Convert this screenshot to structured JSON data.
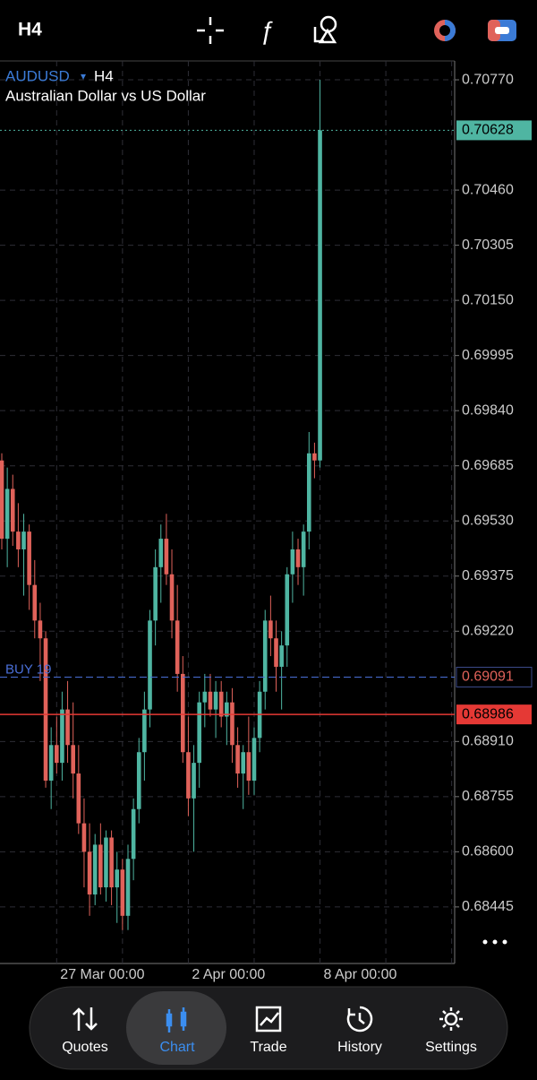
{
  "toolbar": {
    "timeframe": "H4"
  },
  "chart_data": {
    "type": "candlestick",
    "symbol": "AUDUSD",
    "timeframe": "H4",
    "description": "Australian Dollar vs US Dollar",
    "categories": [
      null,
      null,
      null,
      null,
      null,
      null,
      null,
      null,
      null,
      null,
      "27 Mar 00:00",
      null,
      null,
      null,
      null,
      null,
      null,
      null,
      null,
      null,
      null,
      null,
      null,
      null,
      null,
      null,
      null,
      null,
      null,
      null,
      null,
      null,
      null,
      null,
      "2 Apr 00:00",
      null,
      null,
      null,
      null,
      null,
      null,
      null,
      null,
      null,
      null,
      null,
      null,
      null,
      null,
      null,
      null,
      null,
      null,
      null,
      null,
      null,
      null,
      null,
      "8 Apr 00:00"
    ],
    "open": [
      0.697,
      0.6948,
      0.6962,
      0.695,
      0.6945,
      0.695,
      0.6935,
      0.6925,
      0.692,
      0.688,
      0.689,
      0.6885,
      0.69,
      0.689,
      0.6882,
      0.6868,
      0.686,
      0.6848,
      0.6862,
      0.685,
      0.6864,
      0.685,
      0.6855,
      0.6842,
      0.6858,
      0.6872,
      0.6888,
      0.69,
      0.6925,
      0.694,
      0.6948,
      0.6938,
      0.6925,
      0.691,
      0.6888,
      0.6875,
      0.6885,
      0.6902,
      0.6905,
      0.69,
      0.6905,
      0.6898,
      0.6902,
      0.689,
      0.6882,
      0.6888,
      0.688,
      0.6892,
      0.6905,
      0.6925,
      0.692,
      0.6912,
      0.6918,
      0.6938,
      0.6945,
      0.694,
      0.695,
      0.6972,
      0.697
    ],
    "high": [
      0.6972,
      0.6968,
      0.6966,
      0.6958,
      0.6955,
      0.6952,
      0.6942,
      0.693,
      0.6922,
      0.6895,
      0.6898,
      0.6905,
      0.6908,
      0.6902,
      0.689,
      0.6875,
      0.6868,
      0.6865,
      0.6868,
      0.6866,
      0.6866,
      0.686,
      0.6858,
      0.6862,
      0.6875,
      0.6892,
      0.6905,
      0.6928,
      0.6945,
      0.6952,
      0.6955,
      0.6945,
      0.6935,
      0.6915,
      0.6898,
      0.689,
      0.6905,
      0.691,
      0.691,
      0.6908,
      0.6908,
      0.6905,
      0.6906,
      0.6895,
      0.689,
      0.6898,
      0.6895,
      0.6908,
      0.6928,
      0.6932,
      0.6925,
      0.6922,
      0.694,
      0.695,
      0.6948,
      0.6952,
      0.6978,
      0.6975,
      0.7077
    ],
    "low": [
      0.6945,
      0.694,
      0.6946,
      0.694,
      0.6932,
      0.6928,
      0.692,
      0.6908,
      0.6878,
      0.6872,
      0.6882,
      0.688,
      0.6885,
      0.6875,
      0.6865,
      0.685,
      0.6842,
      0.6845,
      0.6848,
      0.6846,
      0.6845,
      0.684,
      0.6838,
      0.6838,
      0.6852,
      0.6868,
      0.688,
      0.6895,
      0.6918,
      0.693,
      0.6935,
      0.692,
      0.6905,
      0.6885,
      0.687,
      0.686,
      0.6878,
      0.6895,
      0.6898,
      0.6892,
      0.6895,
      0.689,
      0.6885,
      0.6878,
      0.6872,
      0.6876,
      0.6876,
      0.6888,
      0.69,
      0.6915,
      0.6905,
      0.69,
      0.6912,
      0.693,
      0.6935,
      0.6932,
      0.6945,
      0.6965,
      0.6968
    ],
    "close": [
      0.6948,
      0.6962,
      0.695,
      0.6945,
      0.695,
      0.6935,
      0.6925,
      0.692,
      0.688,
      0.689,
      0.6885,
      0.69,
      0.689,
      0.6882,
      0.6868,
      0.686,
      0.6848,
      0.6862,
      0.685,
      0.6864,
      0.685,
      0.6855,
      0.6842,
      0.6858,
      0.6872,
      0.6888,
      0.69,
      0.6925,
      0.694,
      0.6948,
      0.6938,
      0.6925,
      0.691,
      0.6888,
      0.6875,
      0.6885,
      0.6902,
      0.6905,
      0.69,
      0.6905,
      0.6898,
      0.6902,
      0.689,
      0.6882,
      0.6888,
      0.688,
      0.6892,
      0.6905,
      0.6925,
      0.692,
      0.6912,
      0.6918,
      0.6938,
      0.6945,
      0.694,
      0.695,
      0.6972,
      0.697,
      0.70628
    ],
    "up_color": "#4fb5a2",
    "down_color": "#e0625a",
    "ylim": [
      0.68286,
      0.70823
    ],
    "yticks": [
      {
        "value": 0.7077,
        "label": "0.70770"
      },
      {
        "value": 0.7046,
        "label": "0.70460"
      },
      {
        "value": 0.70305,
        "label": "0.70305"
      },
      {
        "value": 0.7015,
        "label": "0.70150"
      },
      {
        "value": 0.69995,
        "label": "0.69995"
      },
      {
        "value": 0.6984,
        "label": "0.69840"
      },
      {
        "value": 0.69685,
        "label": "0.69685"
      },
      {
        "value": 0.6953,
        "label": "0.69530"
      },
      {
        "value": 0.69375,
        "label": "0.69375"
      },
      {
        "value": 0.6922,
        "label": "0.69220"
      },
      {
        "value": 0.6891,
        "label": "0.68910"
      },
      {
        "value": 0.68755,
        "label": "0.68755"
      },
      {
        "value": 0.686,
        "label": "0.68600"
      },
      {
        "value": 0.68445,
        "label": "0.68445"
      }
    ],
    "grid": true,
    "price_lines": [
      {
        "value": 0.70628,
        "color": "#4fb5a2"
      },
      {
        "value": 0.69091,
        "color": "#e0625a"
      },
      {
        "value": 0.68986,
        "color": "#e53935"
      }
    ],
    "order": {
      "label": "BUY 19",
      "value": 0.69091,
      "color": "#4a6fd8"
    }
  },
  "nav": [
    "Quotes",
    "Chart",
    "Trade",
    "History",
    "Settings"
  ]
}
